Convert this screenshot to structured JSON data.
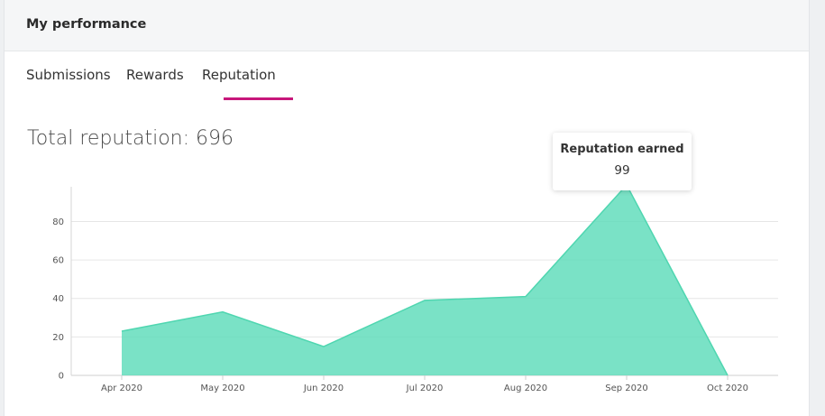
{
  "header": {
    "title": "My performance"
  },
  "tabs": [
    {
      "label": "Submissions",
      "active": false
    },
    {
      "label": "Rewards",
      "active": false
    },
    {
      "label": "Reputation",
      "active": true
    }
  ],
  "summary": {
    "total_label": "Total reputation: 696"
  },
  "tooltip": {
    "title": "Reputation earned",
    "value": "99"
  },
  "colors": {
    "accent": "#c7177b",
    "area_fill": "#5ddcb9",
    "area_stroke": "#4fd6b0"
  },
  "chart_data": {
    "type": "area",
    "categories": [
      "Apr 2020",
      "May 2020",
      "Jun 2020",
      "Jul 2020",
      "Aug 2020",
      "Sep 2020",
      "Oct 2020"
    ],
    "values": [
      23,
      33,
      15,
      39,
      41,
      99,
      0
    ],
    "ylim": [
      0,
      99
    ],
    "yticks": [
      0,
      20,
      40,
      60,
      80
    ],
    "grid": true,
    "xlabel": "",
    "ylabel": ""
  }
}
